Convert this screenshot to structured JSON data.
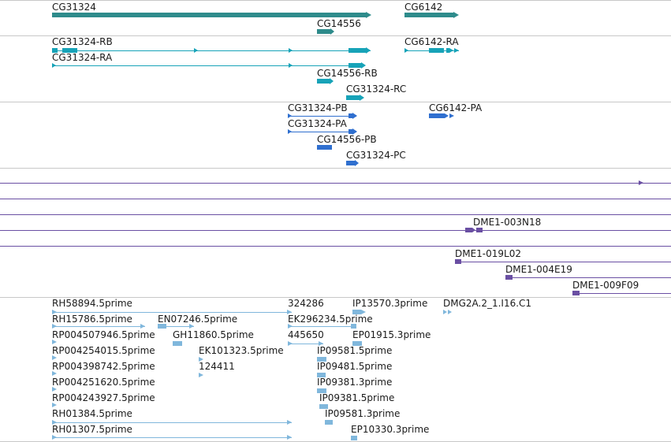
{
  "colors": {
    "gene": "#2e8b8b",
    "transcript": "#17a3b8",
    "protein": "#2f6fcf",
    "clone": "#6a4fa3",
    "est": "#80b7dc"
  },
  "tracks": {
    "genes": [
      {
        "label": "CG31324"
      },
      {
        "label": "CG6142"
      },
      {
        "label": "CG14556"
      }
    ],
    "transcripts": [
      {
        "label": "CG31324-RB"
      },
      {
        "label": "CG6142-RA"
      },
      {
        "label": "CG31324-RA"
      },
      {
        "label": "CG14556-RB"
      },
      {
        "label": "CG31324-RC"
      }
    ],
    "proteins": [
      {
        "label": "CG31324-PB"
      },
      {
        "label": "CG6142-PA"
      },
      {
        "label": "CG31324-PA"
      },
      {
        "label": "CG14556-PB"
      },
      {
        "label": "CG31324-PC"
      }
    ],
    "clones": [
      {
        "label": "DME1-003N18"
      },
      {
        "label": "DME1-019L02"
      },
      {
        "label": "DME1-004E19"
      },
      {
        "label": "DME1-009F09"
      }
    ],
    "ests": [
      {
        "label": "RH58894.5prime"
      },
      {
        "label": "324286"
      },
      {
        "label": "IP13570.3prime"
      },
      {
        "label": "DMG2A.2_1.I16.C1"
      },
      {
        "label": "RH15786.5prime"
      },
      {
        "label": "EN07246.5prime"
      },
      {
        "label": "EK296234.5prime"
      },
      {
        "label": "RP004507946.5prime"
      },
      {
        "label": "GH11860.5prime"
      },
      {
        "label": "445650"
      },
      {
        "label": "EP01915.3prime"
      },
      {
        "label": "RP004254015.5prime"
      },
      {
        "label": "EK101323.5prime"
      },
      {
        "label": "IP09581.5prime"
      },
      {
        "label": "RP004398742.5prime"
      },
      {
        "label": "124411"
      },
      {
        "label": "IP09481.5prime"
      },
      {
        "label": "RP004251620.5prime"
      },
      {
        "label": "IP09381.3prime"
      },
      {
        "label": "RP004243927.5prime"
      },
      {
        "label": "IP09381.5prime"
      },
      {
        "label": "RH01384.5prime"
      },
      {
        "label": "IP09581.3prime"
      },
      {
        "label": "RH01307.5prime"
      },
      {
        "label": "EP10330.3prime"
      }
    ]
  }
}
